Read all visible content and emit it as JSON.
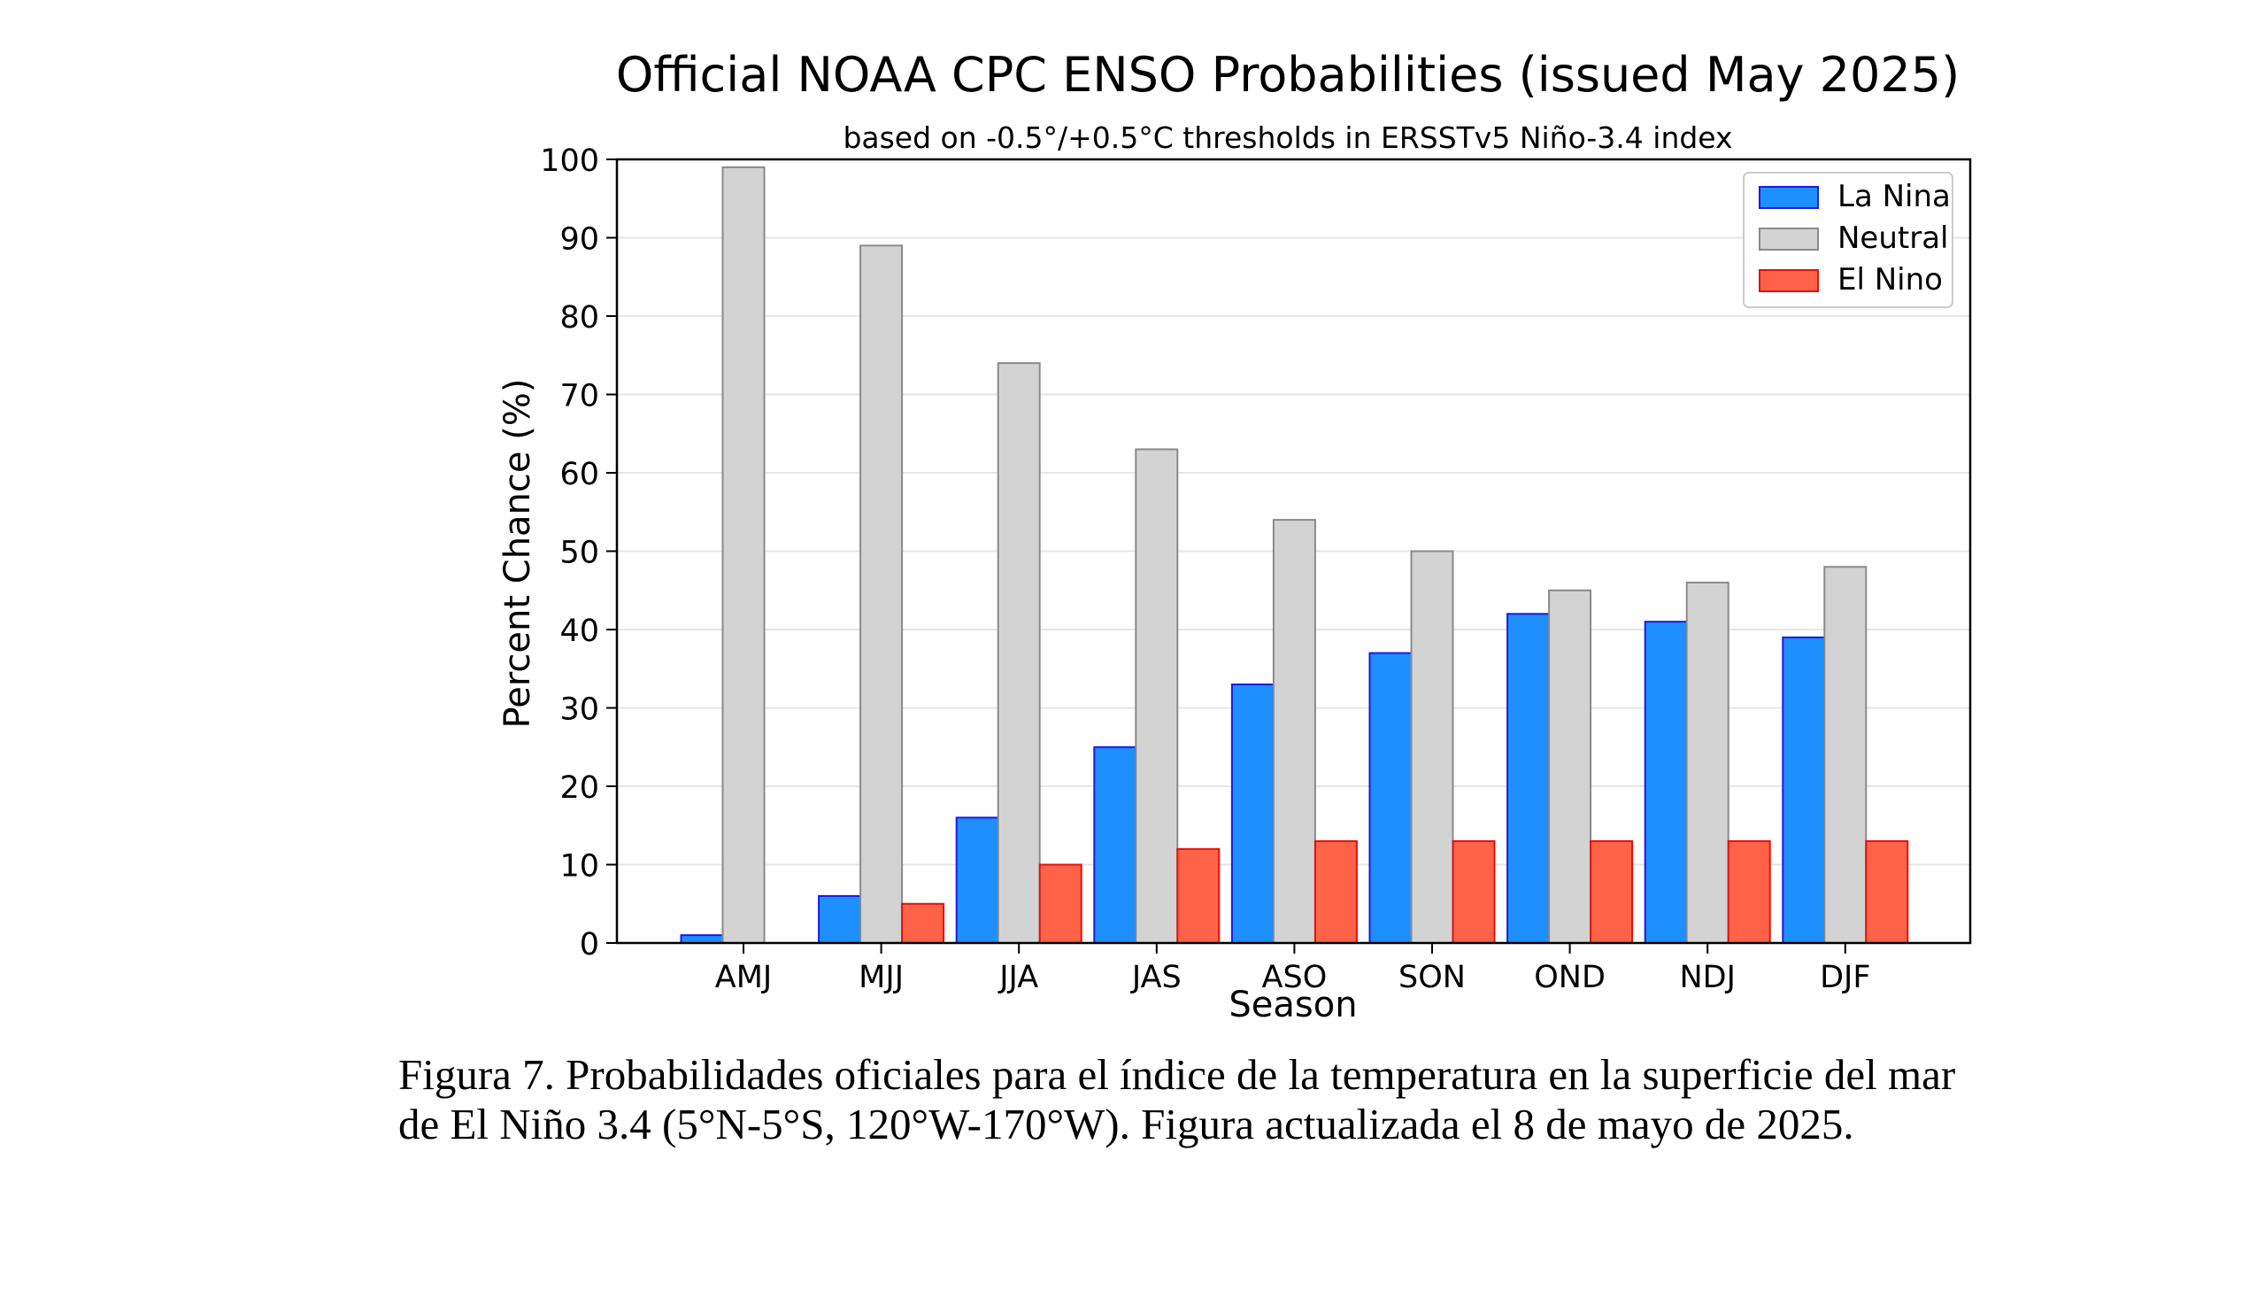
{
  "chart_data": {
    "type": "bar",
    "title": "Official NOAA CPC ENSO Probabilities (issued May 2025)",
    "subtitle": "based on -0.5°/+0.5°C thresholds in ERSSTv5 Niño-3.4 index",
    "xlabel": "Season",
    "ylabel": "Percent Chance (%)",
    "ylim": [
      0,
      100
    ],
    "yticks": [
      "0",
      "10",
      "20",
      "30",
      "40",
      "50",
      "60",
      "70",
      "80",
      "90",
      "100"
    ],
    "grid": true,
    "legend_position": "top-right",
    "categories": [
      "AMJ",
      "MJJ",
      "JJA",
      "JAS",
      "ASO",
      "SON",
      "OND",
      "NDJ",
      "DJF"
    ],
    "series": [
      {
        "name": "La Nina",
        "color": "#1e8fff",
        "edge": "#1a1ae6",
        "values": [
          1,
          6,
          16,
          25,
          33,
          37,
          42,
          41,
          39
        ]
      },
      {
        "name": "Neutral",
        "color": "#d3d3d3",
        "edge": "#8a8a8a",
        "values": [
          99,
          89,
          74,
          63,
          54,
          50,
          45,
          46,
          48
        ]
      },
      {
        "name": "El Nino",
        "color": "#ff6347",
        "edge": "#e01010",
        "values": [
          0,
          5,
          10,
          12,
          13,
          13,
          13,
          13,
          13
        ]
      }
    ]
  },
  "caption": {
    "line1": "Figura 7. Probabilidades oficiales para el índice de la temperatura en la superficie del mar",
    "line2": "de El Niño 3.4 (5°N-5°S, 120°W-170°W). Figura actualizada el 8 de mayo de 2025."
  }
}
